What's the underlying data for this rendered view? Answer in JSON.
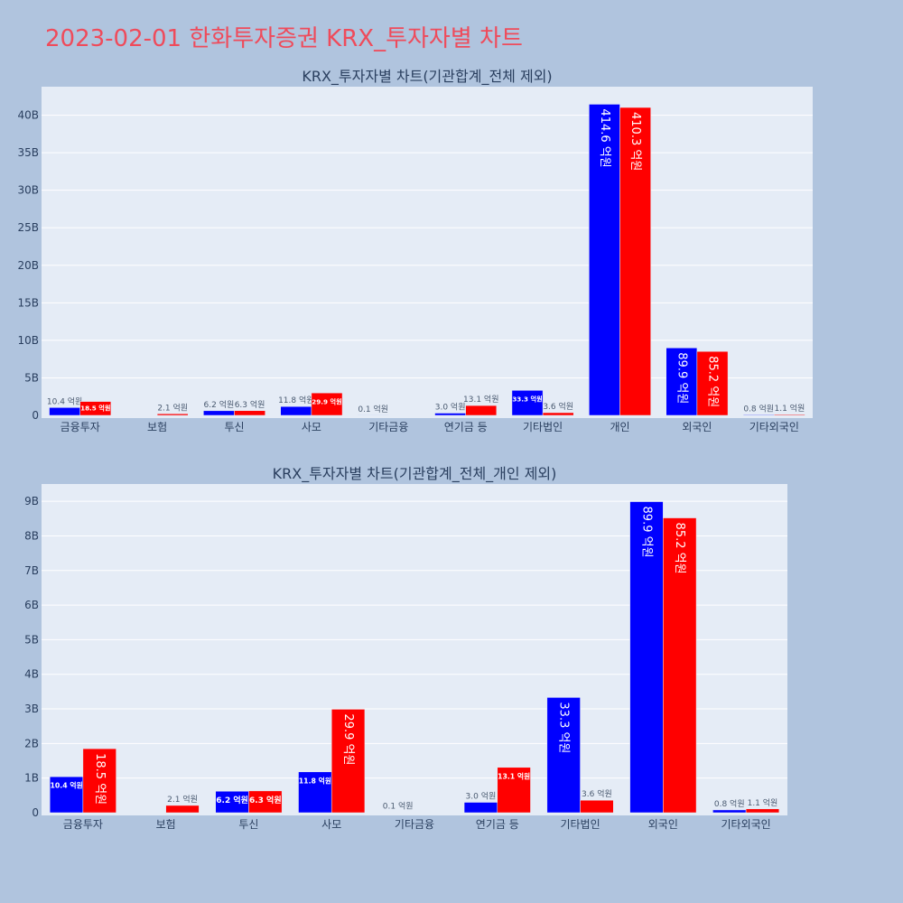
{
  "page": {
    "title": "2023-02-01 한화투자증권 KRX_투자자별 차트"
  },
  "colors": {
    "buy": "#0000ff",
    "sell": "#ff0000",
    "plot_bg": "#e5ecf6",
    "page_bg": "#b0c4de",
    "text": "#2a3f5f"
  },
  "chart_data": [
    {
      "type": "bar",
      "title": "KRX_투자자별 차트(기관합계_전체 제외)",
      "categories": [
        "금융투자",
        "보험",
        "투신",
        "사모",
        "기타금융",
        "연기금 등",
        "기타법인",
        "개인",
        "외국인",
        "기타외국인"
      ],
      "series": [
        {
          "values": [
            1.04,
            0,
            0.62,
            1.18,
            0.01,
            0.3,
            3.33,
            41.46,
            8.99,
            0.08
          ],
          "labels": [
            "10.4 억원",
            "",
            "6.2 억원",
            "11.8 억원",
            "0.1 억원",
            "3.0 억원",
            "33.3 억원",
            "414.6 억원",
            "89.9 억원",
            "0.8 억원"
          ]
        },
        {
          "values": [
            1.85,
            0.21,
            0.63,
            2.99,
            0,
            1.31,
            0.36,
            41.03,
            8.52,
            0.11
          ],
          "labels": [
            "18.5 억원",
            "2.1 억원",
            "6.3 억원",
            "29.9 억원",
            "",
            "13.1 억원",
            "3.6 억원",
            "410.3 억원",
            "85.2 억원",
            "1.1 억원"
          ]
        }
      ],
      "yticks": [
        0,
        5,
        10,
        15,
        20,
        25,
        30,
        35,
        40
      ],
      "ytick_labels": [
        "0",
        "5B",
        "10B",
        "15B",
        "20B",
        "25B",
        "30B",
        "35B",
        "40B"
      ],
      "ylim": [
        0,
        43.8
      ]
    },
    {
      "type": "bar",
      "title": "KRX_투자자별 차트(기관합계_전체_개인 제외)",
      "categories": [
        "금융투자",
        "보험",
        "투신",
        "사모",
        "기타금융",
        "연기금 등",
        "기타법인",
        "외국인",
        "기타외국인"
      ],
      "series": [
        {
          "values": [
            1.04,
            0,
            0.62,
            1.18,
            0.01,
            0.3,
            3.33,
            8.99,
            0.08
          ],
          "labels": [
            "10.4 억원",
            "",
            "6.2 억원",
            "11.8 억원",
            "0.1 억원",
            "3.0 억원",
            "33.3 억원",
            "89.9 억원",
            "0.8 억원"
          ]
        },
        {
          "values": [
            1.85,
            0.21,
            0.63,
            2.99,
            0,
            1.31,
            0.36,
            8.52,
            0.11
          ],
          "labels": [
            "18.5 억원",
            "2.1 억원",
            "6.3 억원",
            "29.9 억원",
            "",
            "13.1 억원",
            "3.6 억원",
            "85.2 억원",
            "1.1 억원"
          ]
        }
      ],
      "yticks": [
        0,
        1,
        2,
        3,
        4,
        5,
        6,
        7,
        8,
        9
      ],
      "ytick_labels": [
        "0",
        "1B",
        "2B",
        "3B",
        "4B",
        "5B",
        "6B",
        "7B",
        "8B",
        "9B"
      ],
      "ylim": [
        0,
        9.5
      ]
    }
  ]
}
